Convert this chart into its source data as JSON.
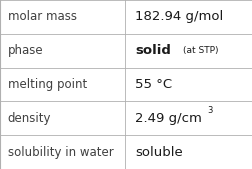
{
  "rows": [
    {
      "label": "molar mass",
      "value": "182.94 g/mol",
      "type": "plain"
    },
    {
      "label": "phase",
      "value": "solid",
      "type": "phase",
      "suffix": "(at STP)"
    },
    {
      "label": "melting point",
      "value": "55 °C",
      "type": "plain"
    },
    {
      "label": "density",
      "value": "2.49 g/cm",
      "type": "super",
      "superscript": "3"
    },
    {
      "label": "solubility in water",
      "value": "soluble",
      "type": "plain"
    }
  ],
  "col_split": 0.495,
  "bg_color": "#ffffff",
  "border_color": "#b0b0b0",
  "label_fontsize": 8.5,
  "value_fontsize": 9.5,
  "suffix_fontsize": 6.5,
  "super_fontsize": 6.0,
  "label_color": "#404040",
  "value_color": "#1a1a1a",
  "font_family": "DejaVu Sans"
}
